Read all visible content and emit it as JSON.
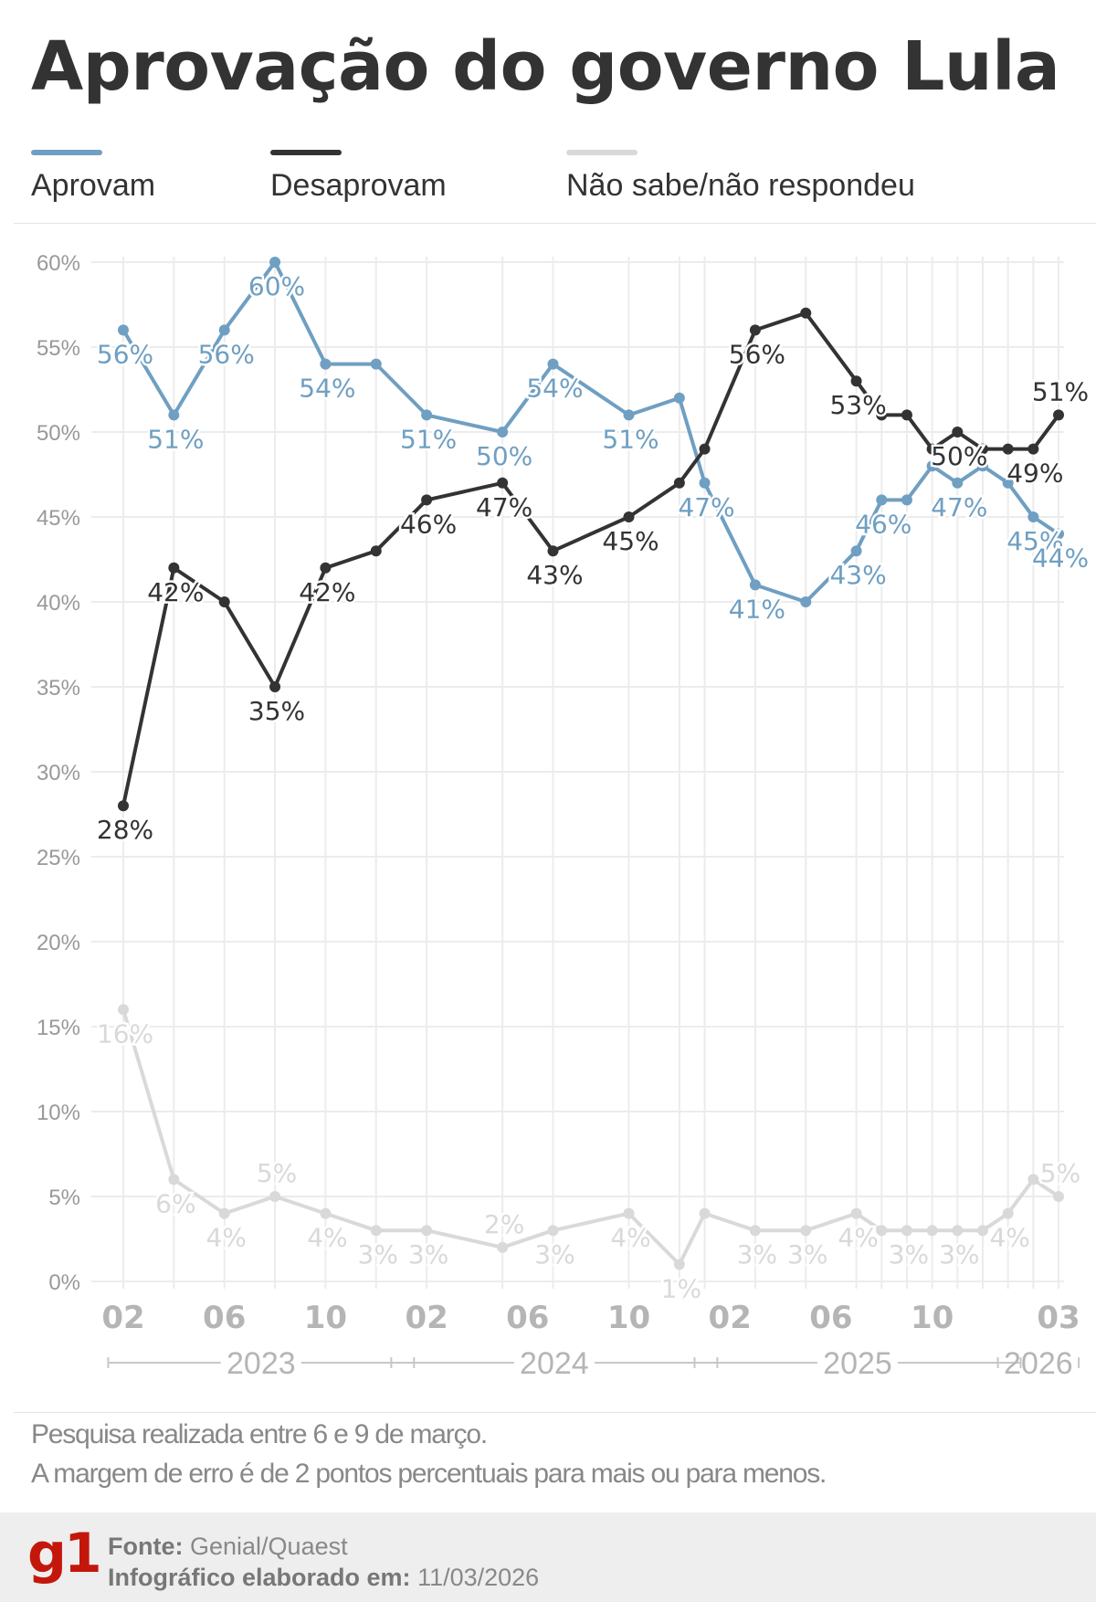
{
  "title": "Aprovação do governo Lula",
  "legend": [
    {
      "label": "Aprovam",
      "color": "#6f9fc2"
    },
    {
      "label": "Desaprovam",
      "color": "#333333"
    },
    {
      "label": "Não sabe/não respondeu",
      "color": "#d9d9d9"
    }
  ],
  "chart_data": {
    "type": "line",
    "x": [
      "2023-02",
      "2023-04",
      "2023-06",
      "2023-08",
      "2023-10",
      "2023-12",
      "2024-02",
      "2024-05",
      "2024-07",
      "2024-10",
      "2024-12",
      "2025-01",
      "2025-03",
      "2025-05",
      "2025-07",
      "2025-08",
      "2025-09",
      "2025-10",
      "2025-11",
      "2025-12",
      "2026-01",
      "2026-02",
      "2026-03"
    ],
    "series": [
      {
        "name": "Aprovam",
        "color": "#6f9fc2",
        "values": [
          56,
          51,
          56,
          60,
          54,
          54,
          51,
          50,
          54,
          51,
          52,
          47,
          41,
          40,
          43,
          46,
          46,
          48,
          47,
          48,
          47,
          45,
          44
        ],
        "labeled": [
          true,
          true,
          true,
          true,
          true,
          false,
          true,
          true,
          true,
          true,
          false,
          true,
          true,
          false,
          true,
          true,
          false,
          false,
          true,
          false,
          false,
          true,
          true
        ]
      },
      {
        "name": "Desaprovam",
        "color": "#333333",
        "values": [
          28,
          42,
          40,
          35,
          42,
          43,
          46,
          47,
          43,
          45,
          47,
          49,
          56,
          57,
          53,
          51,
          51,
          49,
          50,
          49,
          49,
          49,
          51
        ],
        "labeled": [
          true,
          true,
          false,
          true,
          true,
          false,
          true,
          true,
          true,
          true,
          false,
          false,
          true,
          false,
          true,
          false,
          false,
          false,
          true,
          false,
          false,
          true,
          true
        ]
      },
      {
        "name": "Não sabe/não respondeu",
        "color": "#d9d9d9",
        "values": [
          16,
          6,
          4,
          5,
          4,
          3,
          3,
          2,
          3,
          4,
          1,
          4,
          3,
          3,
          4,
          3,
          3,
          3,
          3,
          3,
          4,
          6,
          5
        ],
        "labeled": [
          true,
          true,
          true,
          true,
          true,
          true,
          true,
          true,
          true,
          true,
          true,
          false,
          true,
          true,
          true,
          false,
          true,
          false,
          true,
          false,
          true,
          false,
          true
        ]
      }
    ],
    "y_ticks": [
      "0%",
      "5%",
      "10%",
      "15%",
      "20%",
      "25%",
      "30%",
      "35%",
      "40%",
      "45%",
      "50%",
      "55%",
      "60%"
    ],
    "ylim": [
      0,
      60
    ],
    "x_ticks": [
      {
        "label": "02",
        "date": "2023-02"
      },
      {
        "label": "06",
        "date": "2023-06"
      },
      {
        "label": "10",
        "date": "2023-10"
      },
      {
        "label": "02",
        "date": "2024-02"
      },
      {
        "label": "06",
        "date": "2024-06"
      },
      {
        "label": "10",
        "date": "2024-10"
      },
      {
        "label": "02",
        "date": "2025-02"
      },
      {
        "label": "06",
        "date": "2025-06"
      },
      {
        "label": "10",
        "date": "2025-10"
      },
      {
        "label": "03",
        "date": "2026-03"
      }
    ],
    "years": [
      "2023",
      "2024",
      "2025",
      "2026"
    ],
    "grid": true,
    "legend": "top"
  },
  "notes": [
    "Pesquisa realizada entre 6 e 9 de março.",
    "A margem de erro é de 2 pontos percentuais para mais ou para menos."
  ],
  "footer": {
    "logo": "g1",
    "source_label": "Fonte:",
    "source": "Genial/Quaest",
    "made_label": "Infográfico elaborado em:",
    "made_date": "11/03/2026"
  }
}
